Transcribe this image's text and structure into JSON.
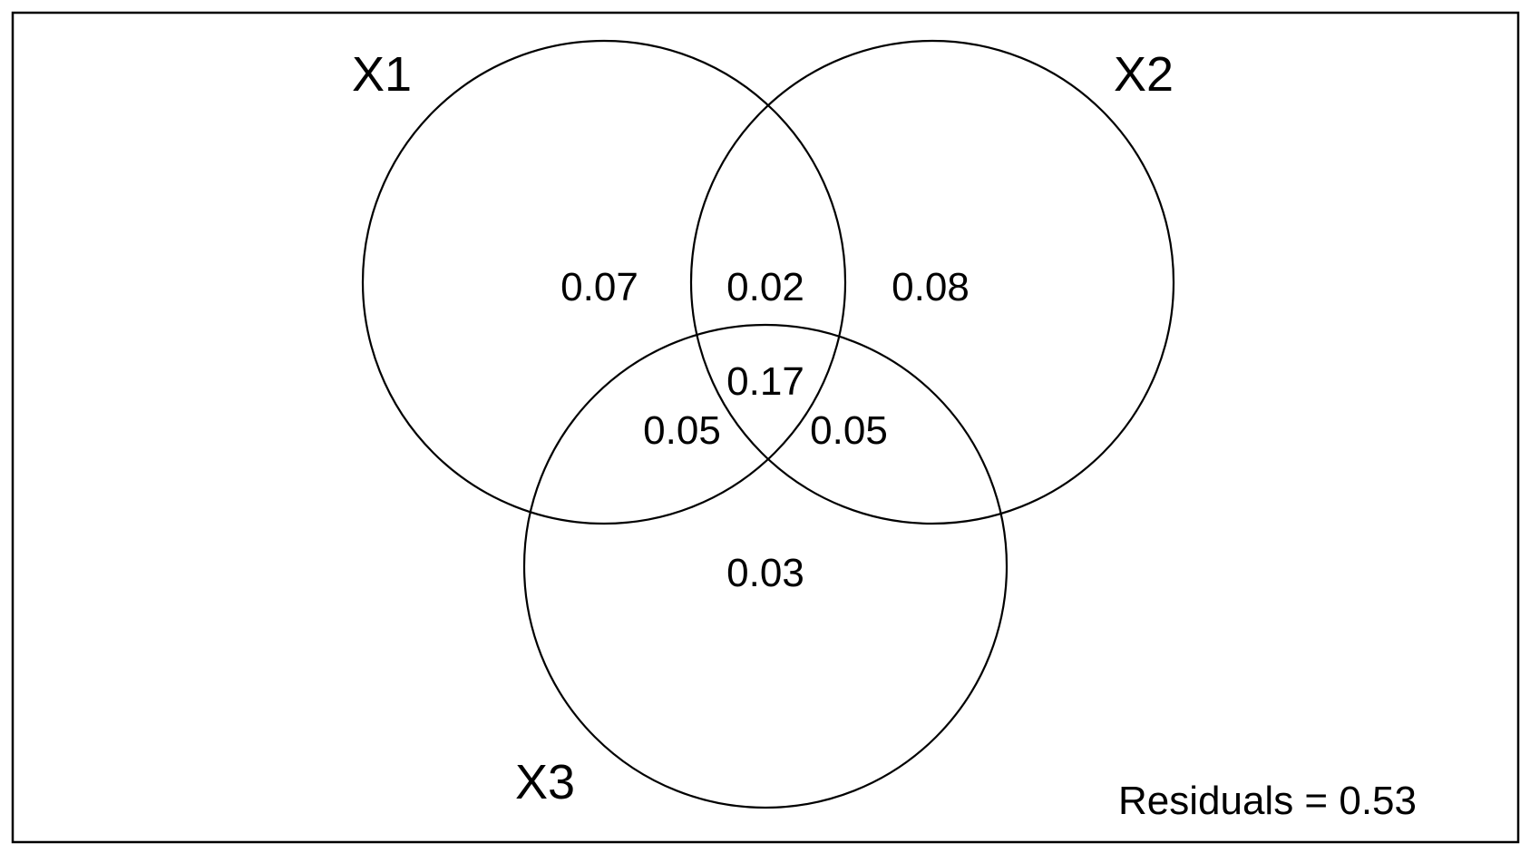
{
  "diagram": {
    "type": "venn",
    "sets": [
      {
        "id": "x1",
        "label": "X1"
      },
      {
        "id": "x2",
        "label": "X2"
      },
      {
        "id": "x3",
        "label": "X3"
      }
    ],
    "regions": {
      "x1_only": "0.07",
      "x1_x2": "0.02",
      "x2_only": "0.08",
      "x1_x2_x3": "0.17",
      "x1_x3": "0.05",
      "x2_x3": "0.05",
      "x3_only": "0.03"
    },
    "residuals_label": "Residuals = 0.53"
  }
}
